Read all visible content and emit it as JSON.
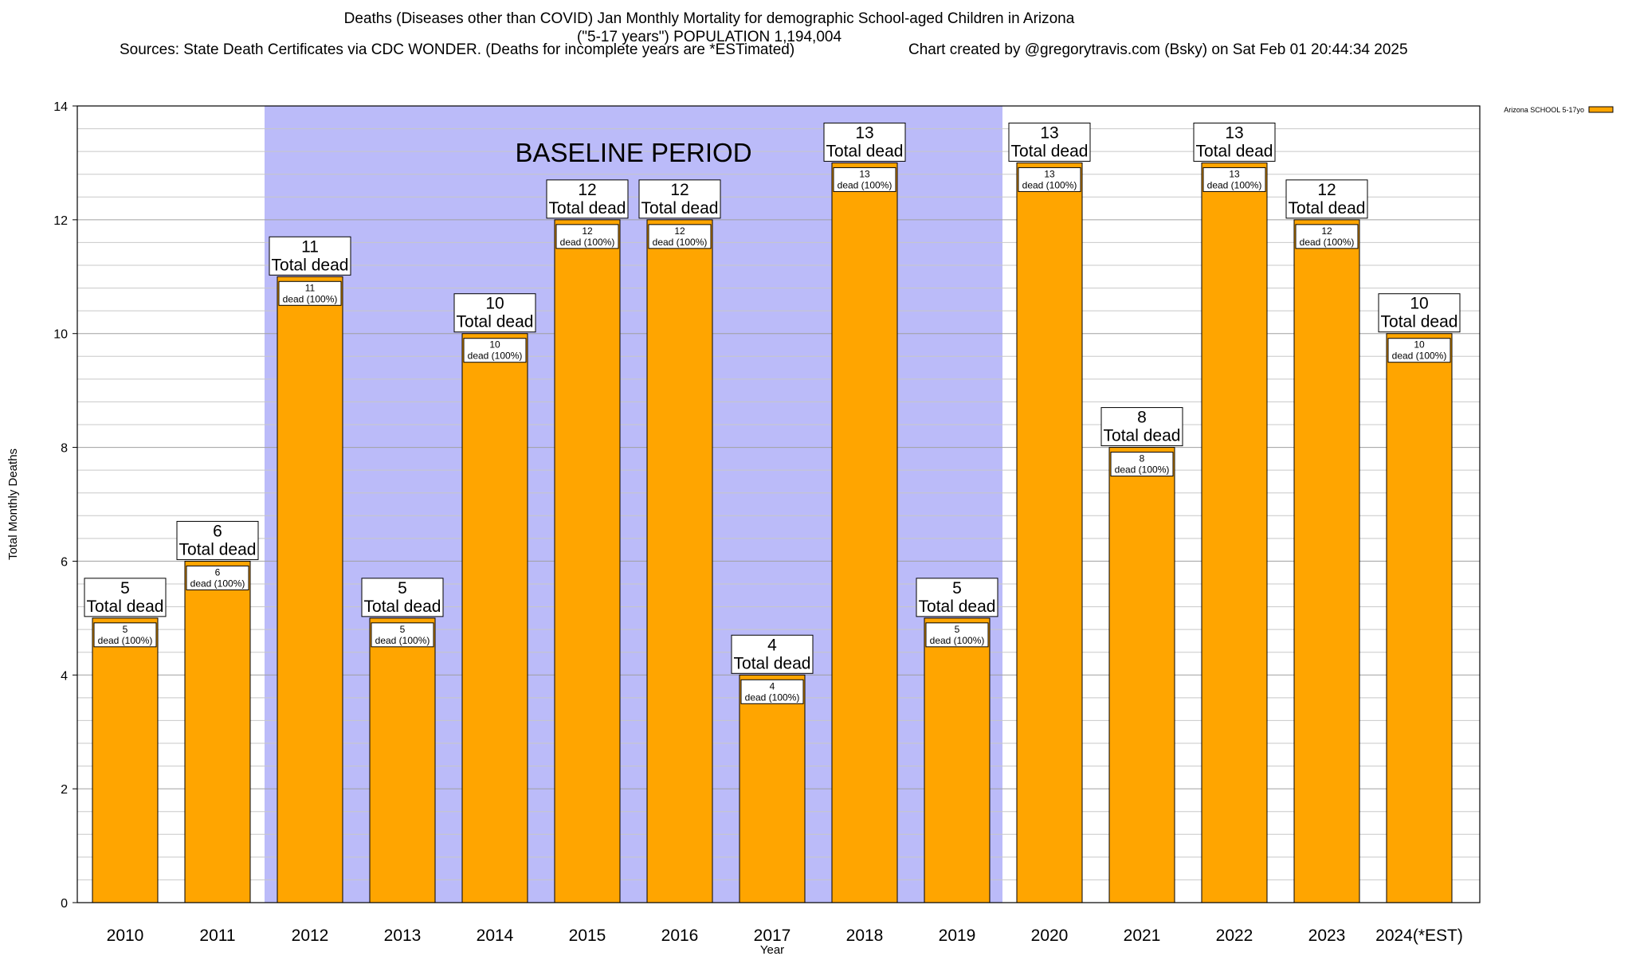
{
  "header": {
    "title_line1": "Deaths (Diseases other than COVID) Jan Monthly Mortality for demographic School-aged Children in Arizona",
    "title_line2": "(\"5-17 years\") POPULATION 1,194,004",
    "sources": "Sources: State Death Certificates via CDC WONDER. (Deaths for incomplete years are *ESTimated)",
    "credit": "Chart created by @gregorytravis.com (Bsky) on Sat Feb 01 20:44:34 2025"
  },
  "chart_data": {
    "type": "bar",
    "xlabel": "Year",
    "ylabel": "Total Monthly Deaths",
    "ylim": [
      0,
      14
    ],
    "yticks": [
      0,
      2,
      4,
      6,
      8,
      10,
      12,
      14
    ],
    "grid": true,
    "legend_position": "top-right",
    "baseline_label": "BASELINE PERIOD",
    "baseline_range": [
      "2012",
      "2019"
    ],
    "total_label_suffix": "Total dead",
    "inner_label_suffix": "dead (100%)",
    "categories": [
      "2010",
      "2011",
      "2012",
      "2013",
      "2014",
      "2015",
      "2016",
      "2017",
      "2018",
      "2019",
      "2020",
      "2021",
      "2022",
      "2023",
      "2024(*EST)"
    ],
    "series": [
      {
        "name": "Arizona SCHOOL 5-17yo",
        "values": [
          5,
          6,
          11,
          5,
          10,
          12,
          12,
          4,
          13,
          5,
          13,
          8,
          13,
          12,
          10
        ]
      }
    ],
    "colors": {
      "bar": "#ffa500",
      "baseline": "#bbbbf9",
      "grid": "#c8c8c8"
    }
  }
}
